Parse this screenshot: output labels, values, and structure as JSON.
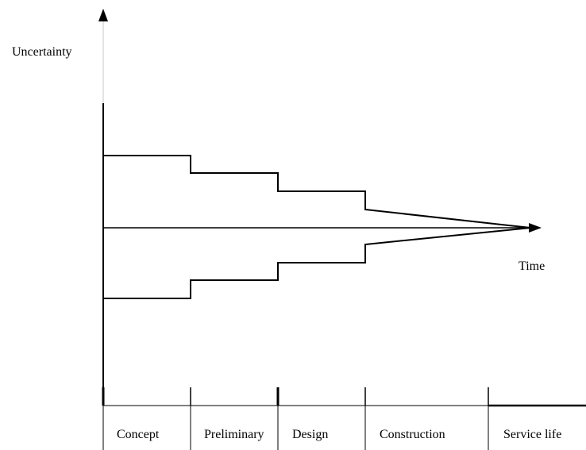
{
  "diagram": {
    "y_axis_label": "Uncertainty",
    "x_axis_label": "Time",
    "phases": [
      "Concept",
      "Preliminary",
      "Design",
      "Construction",
      "Service life"
    ]
  },
  "colors": {
    "line": "#000000",
    "faint_axis": "#c8c8c8",
    "background": "#ffffff"
  }
}
